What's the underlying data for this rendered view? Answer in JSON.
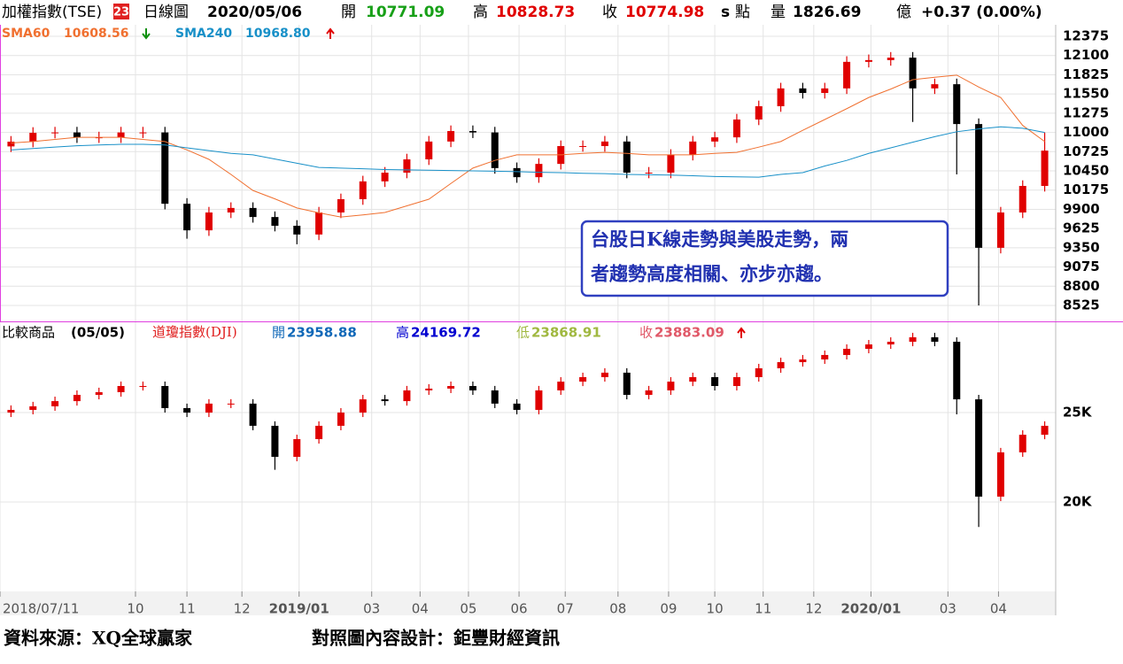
{
  "header": {
    "name": "加權指數(TSE)",
    "badge": "23",
    "period": "日線圖",
    "date": "2020/05/06",
    "open_label": "開",
    "open": "10771.09",
    "high_label": "高",
    "high": "10828.73",
    "close_label": "收",
    "close": "10774.98",
    "s": "s",
    "unit": "點",
    "volume_label": "量",
    "volume": "1826.69",
    "volume_unit": "億",
    "change": "+0.37 (0.00%)"
  },
  "chart_data": [
    {
      "type": "candlestick",
      "ylim": [
        8310,
        12540
      ],
      "xlim": [
        0,
        48
      ],
      "yticks": [
        12375,
        12100,
        11825,
        11550,
        11275,
        11000,
        10725,
        10450,
        10175,
        9900,
        9625,
        9350,
        9075,
        8800,
        8525
      ],
      "up_color": "#e00000",
      "down_color": "#000000",
      "grid": true,
      "open": [
        10800,
        10868,
        10995,
        11000,
        10930,
        10930,
        11000,
        11000,
        9980,
        9600,
        9855,
        9920,
        9790,
        9665,
        9540,
        9855,
        10045,
        10300,
        10425,
        10615,
        10870,
        11020,
        11000,
        10490,
        10360,
        10550,
        10805,
        10805,
        10870,
        10425,
        10425,
        10680,
        10870,
        10930,
        11185,
        11375,
        11630,
        11565,
        11630,
        12010,
        12035,
        12070,
        11630,
        11690,
        11120,
        9350,
        9855,
        10235
      ],
      "high": [
        10948,
        11075,
        11080,
        11080,
        11010,
        11080,
        11080,
        11080,
        10060,
        9935,
        10000,
        10000,
        9870,
        9745,
        9935,
        10125,
        10380,
        10505,
        10695,
        10950,
        11100,
        11100,
        11080,
        10570,
        10630,
        10885,
        10885,
        10950,
        10950,
        10505,
        10760,
        10950,
        11010,
        11265,
        11455,
        11710,
        11710,
        11710,
        12090,
        12115,
        12150,
        12150,
        11770,
        11770,
        11200,
        9935,
        10315,
        11000
      ],
      "low": [
        10720,
        10788,
        10915,
        10850,
        10850,
        10850,
        10920,
        9900,
        9480,
        9520,
        9775,
        9710,
        9585,
        9400,
        9460,
        9775,
        9965,
        10220,
        10345,
        10535,
        10790,
        10920,
        10410,
        10280,
        10280,
        10470,
        10725,
        10725,
        10345,
        10345,
        10345,
        10600,
        10790,
        10850,
        11105,
        11295,
        11485,
        11485,
        11550,
        11930,
        11955,
        11150,
        11550,
        10400,
        8525,
        9270,
        9775,
        10155
      ],
      "close": [
        10868,
        10995,
        11000,
        10930,
        10930,
        11000,
        11000,
        9980,
        9600,
        9855,
        9920,
        9790,
        9665,
        9540,
        9855,
        10045,
        10300,
        10425,
        10615,
        10870,
        11020,
        11000,
        10490,
        10360,
        10550,
        10805,
        10805,
        10870,
        10425,
        10425,
        10680,
        10870,
        10930,
        11185,
        11375,
        11630,
        11565,
        11630,
        12010,
        12035,
        12070,
        11630,
        11690,
        11120,
        9350,
        9855,
        10235,
        10740
      ],
      "series": [
        {
          "name": "SMA60",
          "legend_value": "10608.56",
          "color": "#f07030",
          "values": [
            10850,
            10870,
            10900,
            10930,
            10930,
            10930,
            10900,
            10870,
            10750,
            10615,
            10400,
            10170,
            10050,
            9920,
            9850,
            9790,
            9820,
            9855,
            9950,
            10045,
            10270,
            10490,
            10600,
            10680,
            10680,
            10680,
            10700,
            10715,
            10700,
            10680,
            10680,
            10680,
            10700,
            10715,
            10790,
            10870,
            11030,
            11185,
            11340,
            11500,
            11620,
            11755,
            11790,
            11820,
            11650,
            11500,
            11100,
            10870
          ]
        },
        {
          "name": "SMA240",
          "legend_value": "10968.80",
          "color": "#1890c8",
          "values": [
            10750,
            10770,
            10790,
            10810,
            10820,
            10830,
            10830,
            10820,
            10780,
            10740,
            10700,
            10680,
            10620,
            10560,
            10500,
            10490,
            10480,
            10470,
            10465,
            10460,
            10455,
            10450,
            10445,
            10440,
            10430,
            10425,
            10415,
            10410,
            10400,
            10395,
            10390,
            10380,
            10370,
            10365,
            10360,
            10400,
            10425,
            10520,
            10600,
            10700,
            10780,
            10860,
            10940,
            11010,
            11050,
            11080,
            11060,
            11000
          ]
        }
      ],
      "annotation": [
        "台股日K線走勢與美股走勢，兩",
        "者趨勢高度相關、亦步亦趨。"
      ]
    },
    {
      "type": "candlestick",
      "ylim": [
        15000,
        30000
      ],
      "xlim": [
        0,
        48
      ],
      "yticks": [
        {
          "value": 25000,
          "label": "25K"
        },
        {
          "value": 20000,
          "label": "20K"
        }
      ],
      "up_color": "#e00000",
      "down_color": "#000000",
      "grid": true,
      "title": "比較商品",
      "date": "(05/05)",
      "name": "道瓊指數(DJI)",
      "stats": [
        {
          "label": "開",
          "value": "23958.88",
          "color": "#1068b8"
        },
        {
          "label": "高",
          "value": "24169.72",
          "color": "#0000d0"
        },
        {
          "label": "低",
          "value": "23868.91",
          "color": "#a0b840"
        },
        {
          "label": "收",
          "value": "23883.09",
          "color": "#e05868"
        }
      ],
      "open": [
        25000,
        25150,
        25350,
        25640,
        25990,
        26140,
        26485,
        26485,
        25250,
        25000,
        25500,
        25500,
        24260,
        22525,
        23515,
        24260,
        25000,
        25740,
        25640,
        26240,
        26340,
        26485,
        26240,
        25500,
        25150,
        26240,
        26730,
        26980,
        27230,
        25990,
        26240,
        26730,
        26980,
        26485,
        26980,
        27475,
        27820,
        27970,
        28220,
        28565,
        28810,
        28960,
        29210,
        28960,
        25740,
        20300,
        22775,
        23760
      ],
      "high": [
        25400,
        25600,
        25890,
        26240,
        26390,
        26735,
        26735,
        26735,
        25500,
        25750,
        25750,
        25750,
        24510,
        23765,
        24510,
        25250,
        25990,
        25990,
        26490,
        26590,
        26735,
        26735,
        26490,
        25750,
        26490,
        26980,
        27230,
        27480,
        27480,
        26490,
        26980,
        27230,
        27230,
        27230,
        27725,
        28070,
        28220,
        28470,
        28815,
        29060,
        29210,
        29460,
        29460,
        29210,
        25990,
        23025,
        24010,
        24510
      ],
      "low": [
        24750,
        24900,
        25100,
        25390,
        25740,
        25890,
        26235,
        25000,
        24750,
        24750,
        25250,
        24010,
        21800,
        22275,
        23265,
        24010,
        24750,
        25390,
        25390,
        25990,
        26090,
        25990,
        25250,
        24900,
        24900,
        25990,
        26480,
        26730,
        25740,
        25740,
        25990,
        26480,
        26235,
        26235,
        26730,
        27225,
        27570,
        27720,
        27970,
        28315,
        28560,
        28710,
        28710,
        24900,
        18600,
        20050,
        22525,
        23510
      ],
      "close": [
        25150,
        25350,
        25640,
        25990,
        26140,
        26485,
        26485,
        25250,
        25000,
        25500,
        25500,
        24260,
        22525,
        23515,
        24260,
        25000,
        25740,
        25640,
        26240,
        26340,
        26485,
        26240,
        25500,
        25150,
        26240,
        26730,
        26980,
        27230,
        25990,
        26240,
        26730,
        26980,
        26485,
        26980,
        27475,
        27820,
        27970,
        28220,
        28565,
        28810,
        28960,
        29210,
        28960,
        25740,
        20300,
        22775,
        23760,
        24260
      ],
      "xticks": [
        {
          "value": 0,
          "label": "2018/07/11"
        },
        {
          "value": 6.16,
          "label": "10"
        },
        {
          "value": 8.5,
          "label": "11"
        },
        {
          "value": 11,
          "label": "12"
        },
        {
          "value": 13.6,
          "label": "2019/01"
        },
        {
          "value": 16.9,
          "label": "03"
        },
        {
          "value": 19.1,
          "label": "04"
        },
        {
          "value": 21.3,
          "label": "05"
        },
        {
          "value": 23.6,
          "label": "06"
        },
        {
          "value": 25.7,
          "label": "07"
        },
        {
          "value": 28.1,
          "label": "08"
        },
        {
          "value": 30.4,
          "label": "09"
        },
        {
          "value": 32.5,
          "label": "10"
        },
        {
          "value": 34.7,
          "label": "11"
        },
        {
          "value": 37,
          "label": "12"
        },
        {
          "value": 39.6,
          "label": "2020/01"
        },
        {
          "value": 43.1,
          "label": "03"
        },
        {
          "value": 45.4,
          "label": "04"
        }
      ]
    }
  ],
  "footer": {
    "source": "資料來源：XQ全球贏家",
    "design": "對照圖內容設計：鉅豐財經資訊"
  }
}
